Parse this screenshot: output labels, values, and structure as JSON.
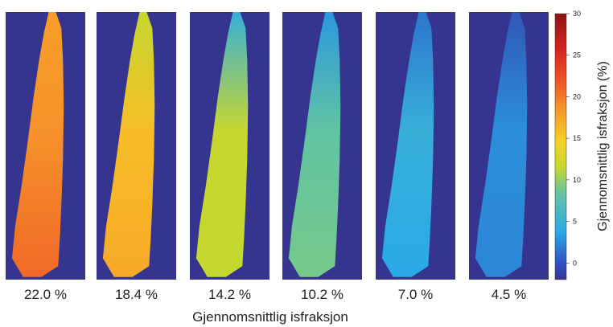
{
  "chart_data": {
    "type": "heatmap",
    "xlabel": "Gjennomsnittlig isfraksjon",
    "colorbar": {
      "label": "Gjennomsnittlig isfraksjon (%)",
      "range": [
        -2,
        30
      ],
      "ticks": [
        "30",
        "25",
        "20",
        "15",
        "10",
        "5",
        "0"
      ],
      "tick_values": [
        30,
        25,
        20,
        15,
        10,
        5,
        0
      ]
    },
    "panels": [
      {
        "label": "22.0 %",
        "mean_fraction": 22.0,
        "top_fraction": 21,
        "bottom_fraction": 24
      },
      {
        "label": "18.4 %",
        "mean_fraction": 18.4,
        "top_fraction": 14,
        "bottom_fraction": 20
      },
      {
        "label": "14.2 %",
        "mean_fraction": 14.2,
        "top_fraction": 7,
        "bottom_fraction": 14
      },
      {
        "label": "10.2 %",
        "mean_fraction": 10.2,
        "top_fraction": 5,
        "bottom_fraction": 11
      },
      {
        "label": "7.0 %",
        "mean_fraction": 7.0,
        "top_fraction": 3,
        "bottom_fraction": 6
      },
      {
        "label": "4.5 %",
        "mean_fraction": 4.5,
        "top_fraction": 1,
        "bottom_fraction": 4
      }
    ],
    "background_color": "#35348f",
    "colormap": [
      "#33348f",
      "#2f63c5",
      "#2aa9e8",
      "#5cc3a8",
      "#c4d830",
      "#f7c227",
      "#f6922a",
      "#ea3f24",
      "#8b1414"
    ]
  }
}
